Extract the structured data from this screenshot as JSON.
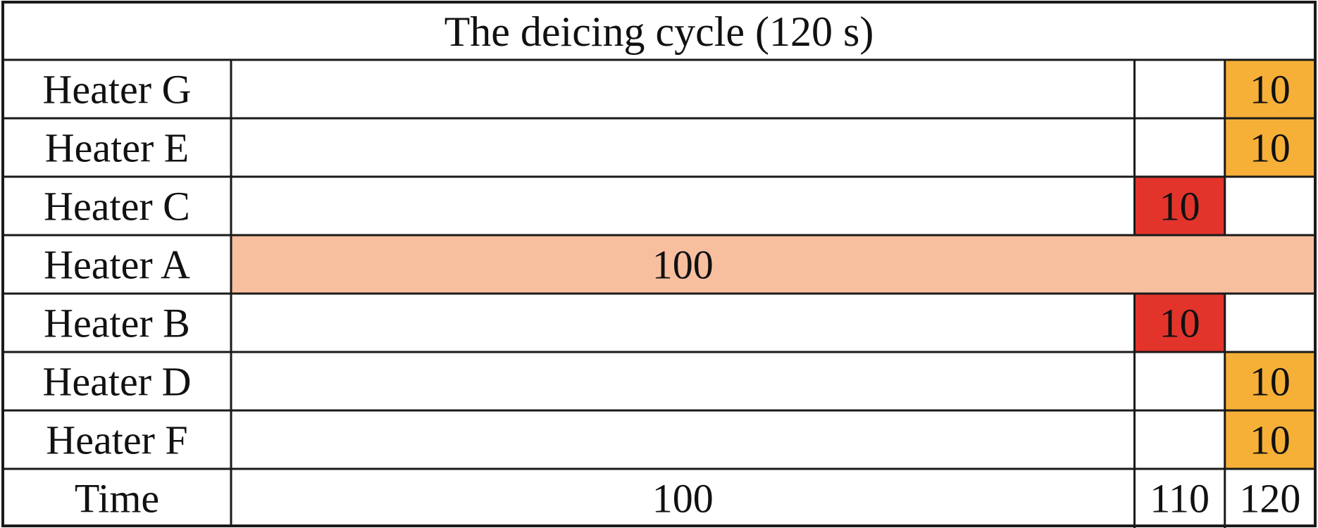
{
  "title": "The deicing cycle (120 s)",
  "colors": {
    "heater_a": "#f8bf9f",
    "first_stage": "#e3342c",
    "second_stage": "#f7b037",
    "border": "#1a1a1a",
    "text": "#111111"
  },
  "time_row": {
    "label": "Time",
    "marks": [
      {
        "text": "100",
        "start": 0,
        "end": 100
      },
      {
        "text": "110",
        "start": 100,
        "end": 110
      },
      {
        "text": "120",
        "start": 110,
        "end": 120
      }
    ]
  },
  "cycle_length_s": 120,
  "rows": [
    {
      "label": "Heater G",
      "block": {
        "text": "10",
        "start": 110,
        "end": 120,
        "color": "second_stage"
      }
    },
    {
      "label": "Heater E",
      "block": {
        "text": "10",
        "start": 110,
        "end": 120,
        "color": "second_stage"
      }
    },
    {
      "label": "Heater C",
      "block": {
        "text": "10",
        "start": 100,
        "end": 110,
        "color": "first_stage"
      }
    },
    {
      "label": "Heater A",
      "block": {
        "text": "100",
        "start": 0,
        "end": 120,
        "color": "heater_a",
        "text_center_start": 0,
        "text_center_end": 100
      }
    },
    {
      "label": "Heater B",
      "block": {
        "text": "10",
        "start": 100,
        "end": 110,
        "color": "first_stage"
      }
    },
    {
      "label": "Heater D",
      "block": {
        "text": "10",
        "start": 110,
        "end": 120,
        "color": "second_stage"
      }
    },
    {
      "label": "Heater F",
      "block": {
        "text": "10",
        "start": 110,
        "end": 120,
        "color": "second_stage"
      }
    }
  ]
}
